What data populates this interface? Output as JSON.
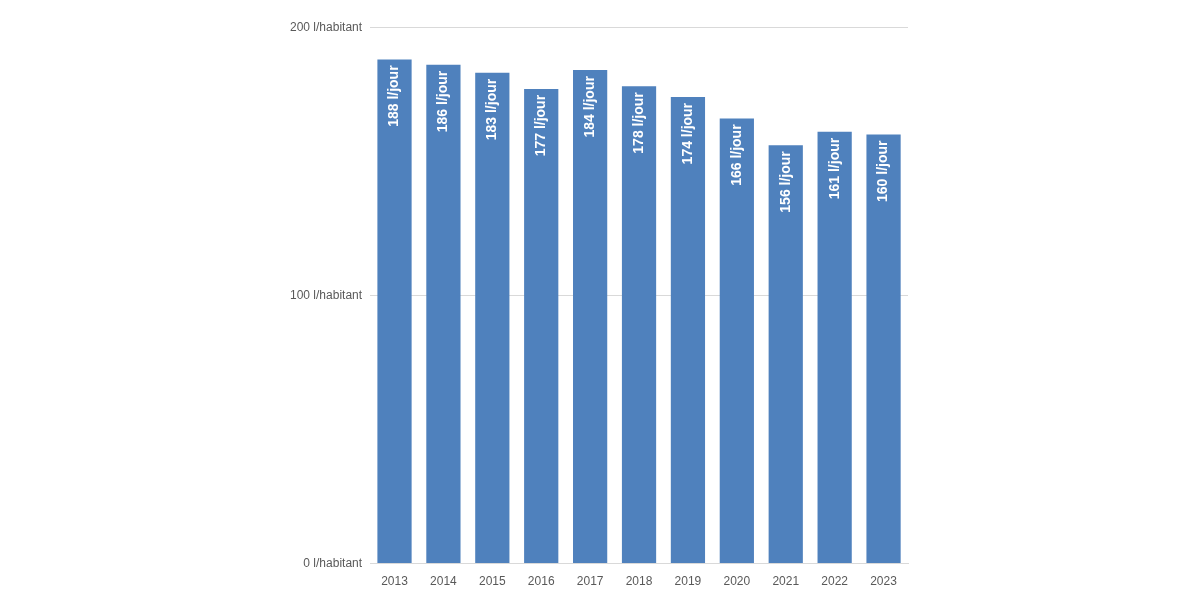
{
  "chart_data": {
    "type": "bar",
    "categories": [
      "2013",
      "2014",
      "2015",
      "2016",
      "2017",
      "2018",
      "2019",
      "2020",
      "2021",
      "2022",
      "2023"
    ],
    "values": [
      188,
      186,
      183,
      177,
      184,
      178,
      174,
      166,
      156,
      161,
      160
    ],
    "value_labels": [
      "188 l/jour",
      "186 l/jour",
      "183 l/jour",
      "177 l/jour",
      "184 l/jour",
      "178 l/jour",
      "174 l/jour",
      "166 l/jour",
      "156 l/jour",
      "161 l/jour",
      "160 l/jour"
    ],
    "color": "#4f81bd",
    "ylim": [
      0,
      200
    ],
    "yticks": [
      {
        "value": 0,
        "label": "0 l/habitant"
      },
      {
        "value": 100,
        "label": "100 l/habitant"
      },
      {
        "value": 200,
        "label": "200 l/habitant"
      }
    ],
    "grid": true,
    "data_labels": true
  }
}
